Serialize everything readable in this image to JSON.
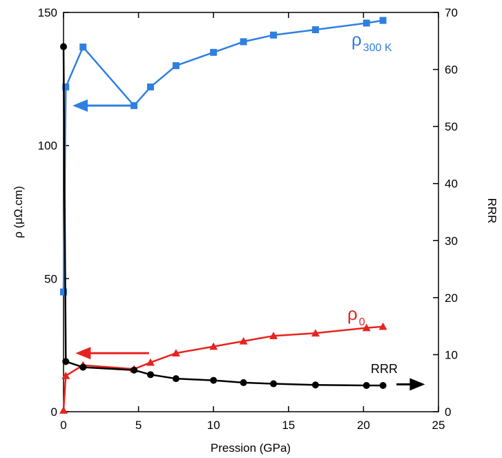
{
  "chart_data": {
    "type": "line",
    "xlabel": "Pression (GPa)",
    "ylabel_left": "ρ (μΩ.cm)",
    "ylabel_right": "RRR",
    "xlim": [
      0,
      25
    ],
    "ylim_left": [
      0,
      150
    ],
    "ylim_right": [
      0,
      70
    ],
    "x_ticks": [
      "0",
      "5",
      "10",
      "15",
      "20",
      "25"
    ],
    "y_ticks_left": [
      "0",
      "50",
      "100",
      "150"
    ],
    "y_ticks_right": [
      "0",
      "10",
      "20",
      "30",
      "40",
      "50",
      "60",
      "70"
    ],
    "grid": false,
    "series": [
      {
        "name": "ρ300 K",
        "label_main": "ρ",
        "label_sub": "300 K",
        "axis": "left",
        "color": "#2f7fe0",
        "marker": "square",
        "x": [
          0.0,
          0.15,
          1.3,
          4.7,
          5.8,
          7.5,
          10.0,
          12.0,
          14.0,
          16.8,
          20.2,
          21.3
        ],
        "y": [
          45,
          122,
          137,
          115,
          122,
          130,
          135,
          139,
          141.5,
          143.5,
          146,
          147
        ]
      },
      {
        "name": "ρ0",
        "label_main": "ρ",
        "label_sub": "0",
        "axis": "left",
        "color": "#e8231f",
        "marker": "triangle",
        "x": [
          0.0,
          0.15,
          1.3,
          4.7,
          5.8,
          7.5,
          10.0,
          12.0,
          14.0,
          16.8,
          20.2,
          21.3
        ],
        "y": [
          0.5,
          13.5,
          17.5,
          16,
          18.5,
          22,
          24.5,
          26.5,
          28.5,
          29.5,
          31.5,
          32
        ]
      },
      {
        "name": "RRR",
        "label_main": "RRR",
        "label_sub": "",
        "axis": "right",
        "color": "#000000",
        "marker": "circle",
        "x": [
          0.0,
          0.15,
          1.3,
          4.7,
          5.8,
          7.5,
          10.0,
          12.0,
          14.0,
          16.8,
          20.2,
          21.3
        ],
        "y": [
          64,
          8.8,
          7.8,
          7.3,
          6.5,
          5.8,
          5.5,
          5.1,
          4.9,
          4.7,
          4.6,
          4.6
        ]
      }
    ],
    "annotations": [
      {
        "type": "arrow",
        "target": "left-axis",
        "color": "#2f7fe0",
        "from": [
          4.7,
          115
        ],
        "to": [
          0.6,
          115
        ],
        "axis": "left"
      },
      {
        "type": "arrow",
        "target": "left-axis",
        "color": "#e8231f",
        "from": [
          5.7,
          22
        ],
        "to": [
          0.8,
          22
        ],
        "axis": "left"
      },
      {
        "type": "arrow",
        "target": "right-axis",
        "color": "#000000",
        "from": [
          22.2,
          4.8
        ],
        "to": [
          24.1,
          4.8
        ],
        "axis": "right"
      }
    ]
  }
}
